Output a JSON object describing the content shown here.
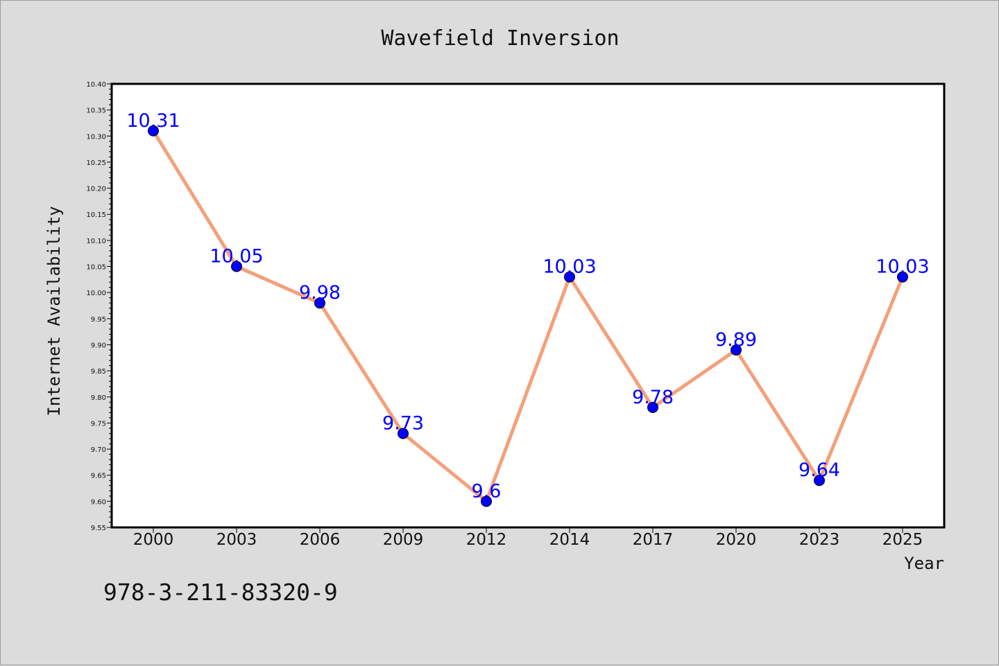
{
  "chart_data": {
    "type": "line",
    "title": "Wavefield Inversion",
    "xlabel": "Year",
    "ylabel": "Internet Availability",
    "categories": [
      "2000",
      "2003",
      "2006",
      "2009",
      "2012",
      "2014",
      "2017",
      "2020",
      "2023",
      "2025"
    ],
    "series": [
      {
        "values": [
          10.31,
          10.05,
          9.98,
          9.73,
          9.6,
          10.03,
          9.78,
          9.89,
          9.64,
          10.03
        ],
        "labels": [
          "10.31",
          "10.05",
          "9.98",
          "9.73",
          "9.6",
          "10.03",
          "9.78",
          "9.89",
          "9.64",
          "10.03"
        ]
      }
    ],
    "ylim": [
      9.55,
      10.4
    ],
    "yticks": [
      "9.55",
      "9.60",
      "9.65",
      "9.70",
      "9.75",
      "9.80",
      "9.85",
      "9.90",
      "9.95",
      "10.00",
      "10.05",
      "10.10",
      "10.15",
      "10.20",
      "10.25",
      "10.30",
      "10.35",
      "10.40"
    ],
    "grid": false,
    "legend": "none"
  },
  "footnote": "978-3-211-83320-9",
  "colors": {
    "background": "#dcdcdc",
    "plot_area": "#ffffff",
    "line": "#f4a07a",
    "marker": "#0000ff",
    "data_label": "#0000ff",
    "axis": "#000000"
  }
}
